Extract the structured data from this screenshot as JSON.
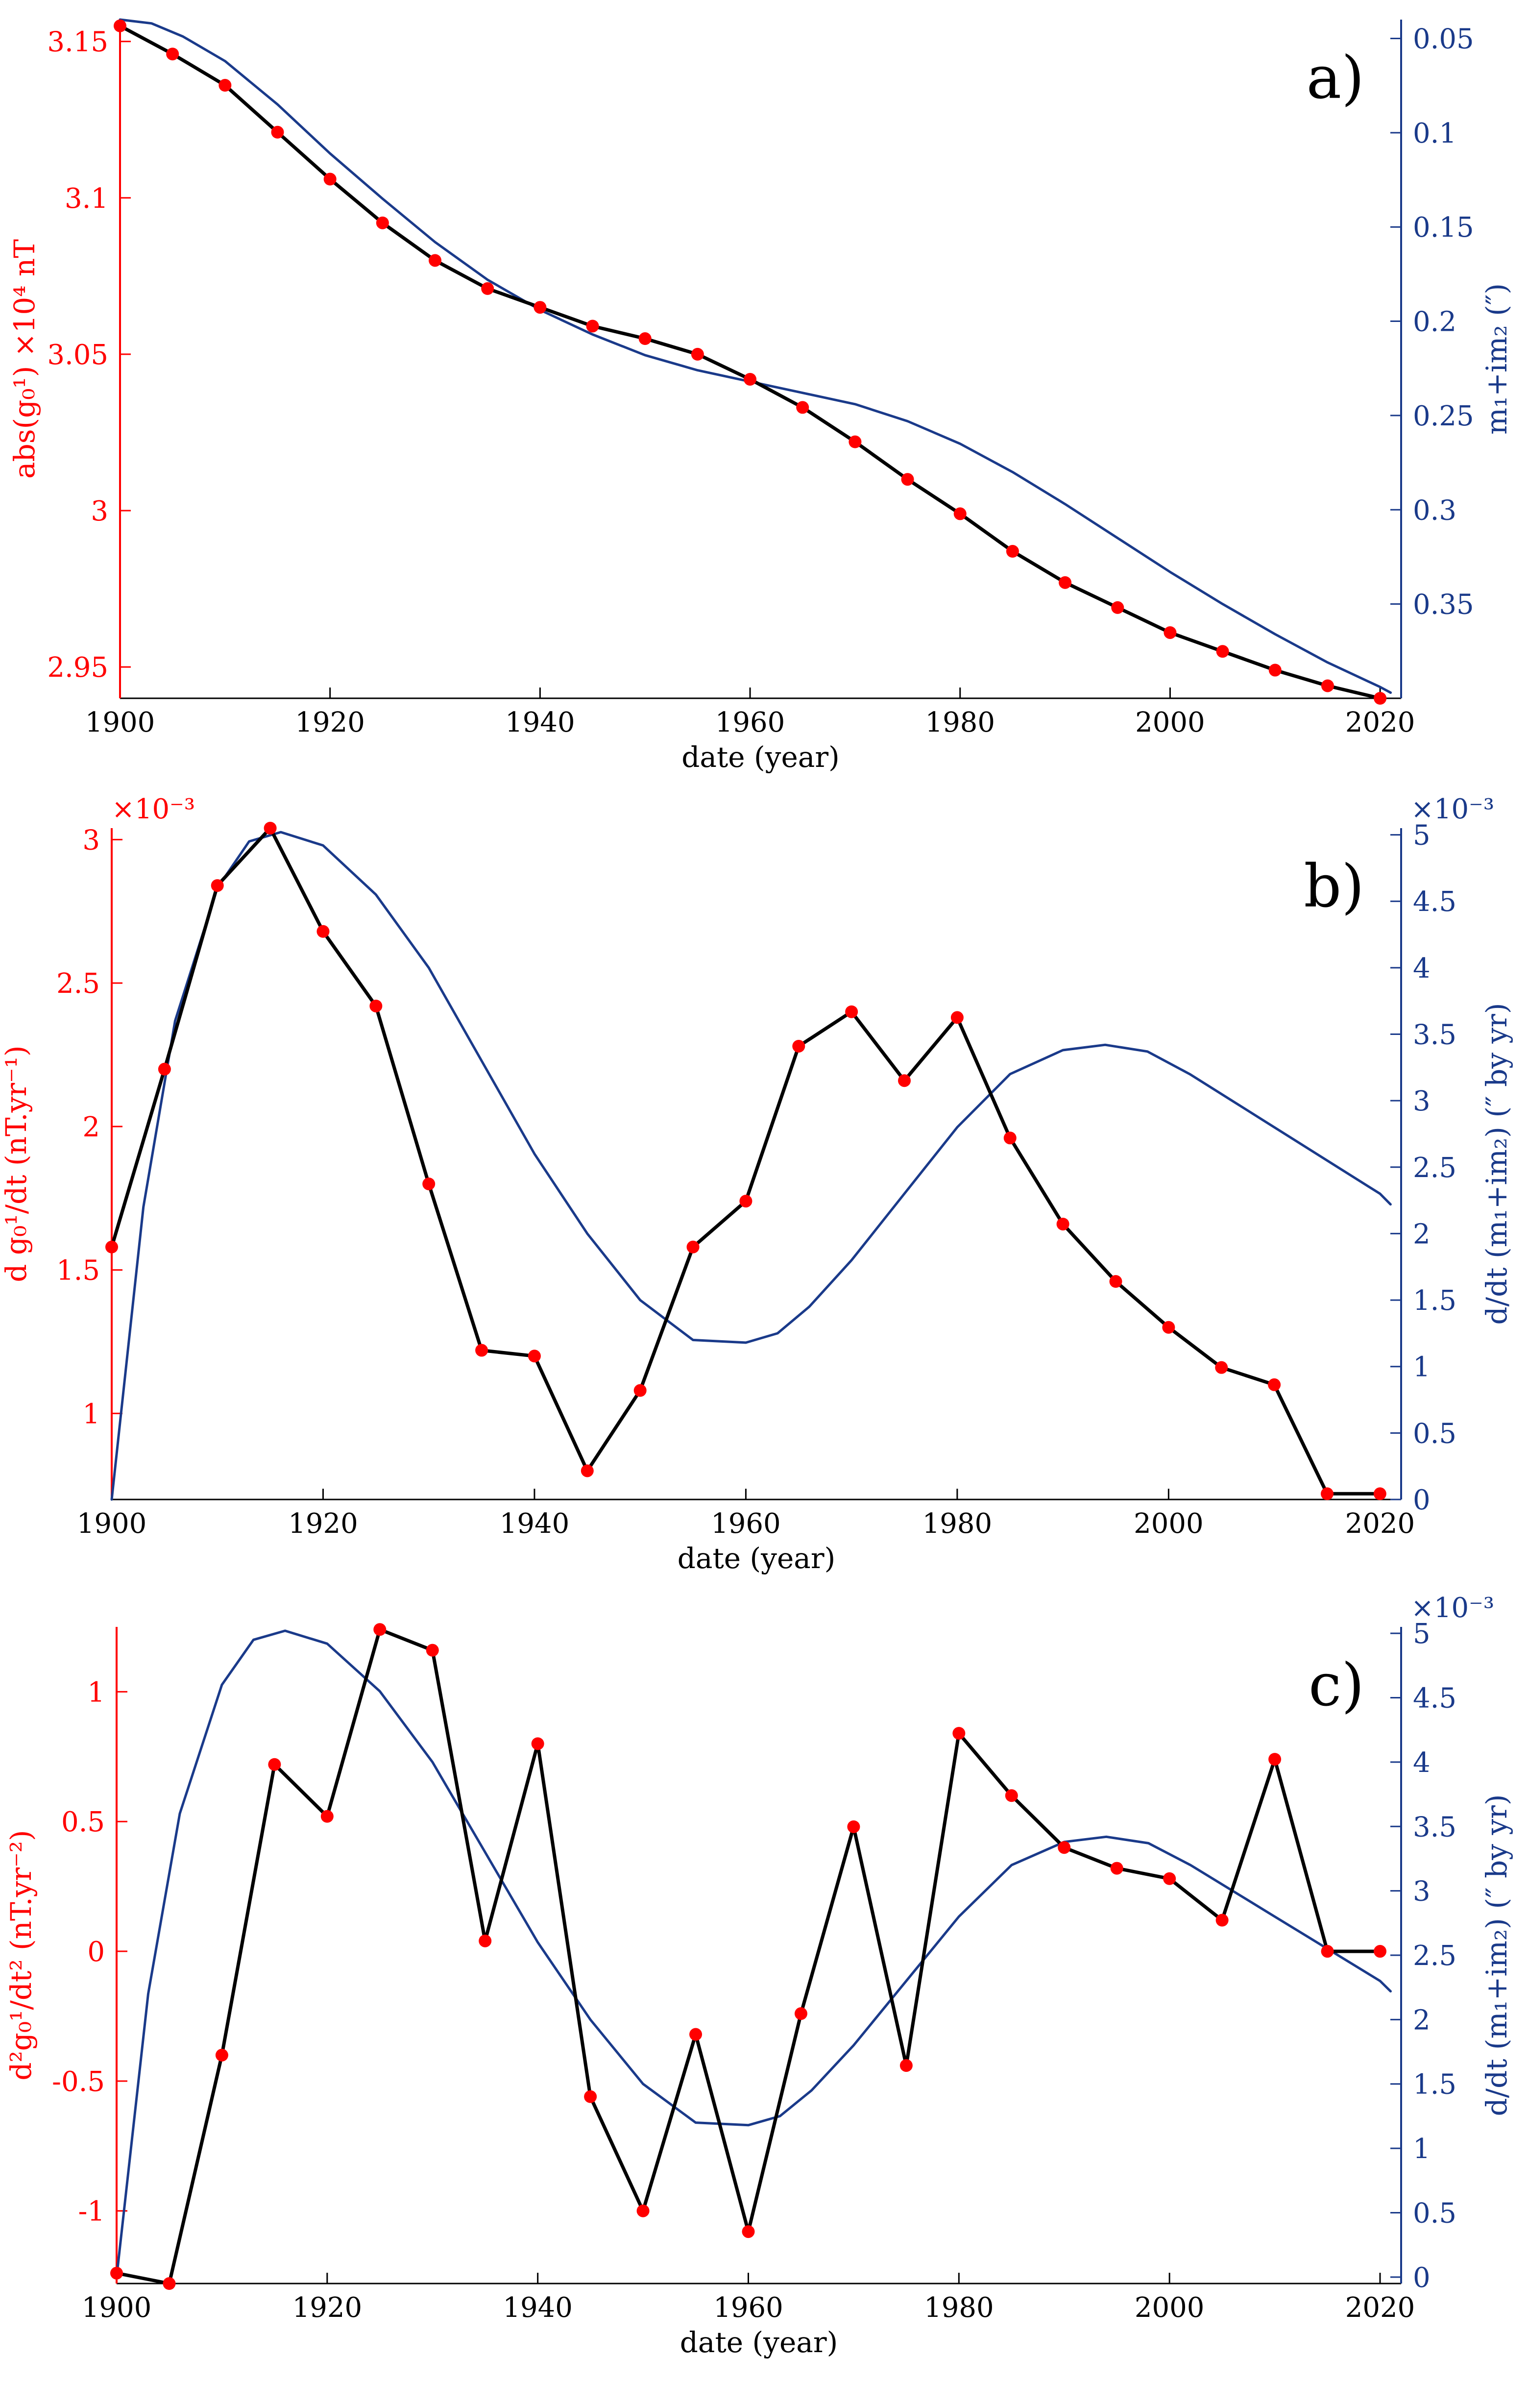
{
  "colors": {
    "left_axis": "#ff0000",
    "right_axis": "#1a3a8a",
    "data_line": "#000000",
    "marker": "#ff0000",
    "curve": "#1a3a8a"
  },
  "chart_data": [
    {
      "type": "line",
      "panel_label": "a)",
      "xlabel": "date (year)",
      "ylabel_left": "abs(g₀¹) ×10⁴ nT",
      "ylabel_right": "m₁+im₂ (″)",
      "xlim": [
        1900,
        2022
      ],
      "ylim_left": [
        2.94,
        3.157
      ],
      "ylim_right": [
        0.04,
        0.4
      ],
      "right_reversed": true,
      "multiplier_left": "",
      "multiplier_right": "",
      "xticks": [
        1900,
        1920,
        1940,
        1960,
        1980,
        2000,
        2020
      ],
      "yticks_left": [
        {
          "v": 2.95,
          "t": "2.95"
        },
        {
          "v": 3.0,
          "t": "3"
        },
        {
          "v": 3.05,
          "t": "3.05"
        },
        {
          "v": 3.1,
          "t": "3.1"
        },
        {
          "v": 3.15,
          "t": "3.15"
        }
      ],
      "yticks_right": [
        {
          "v": 0.05,
          "t": "0.05"
        },
        {
          "v": 0.1,
          "t": "0.1"
        },
        {
          "v": 0.15,
          "t": "0.15"
        },
        {
          "v": 0.2,
          "t": "0.2"
        },
        {
          "v": 0.25,
          "t": "0.25"
        },
        {
          "v": 0.3,
          "t": "0.3"
        },
        {
          "v": 0.35,
          "t": "0.35"
        }
      ],
      "series": [
        {
          "name": "abs(g01)",
          "axis": "left",
          "markers": true,
          "x": [
            1900,
            1905,
            1910,
            1915,
            1920,
            1925,
            1930,
            1935,
            1940,
            1945,
            1950,
            1955,
            1960,
            1965,
            1970,
            1975,
            1980,
            1985,
            1990,
            1995,
            2000,
            2005,
            2010,
            2015,
            2020
          ],
          "y": [
            3.155,
            3.146,
            3.136,
            3.121,
            3.106,
            3.092,
            3.08,
            3.071,
            3.065,
            3.059,
            3.055,
            3.05,
            3.042,
            3.033,
            3.022,
            3.01,
            2.999,
            2.987,
            2.977,
            2.969,
            2.961,
            2.955,
            2.949,
            2.944,
            2.94
          ]
        },
        {
          "name": "m1+im2",
          "axis": "right",
          "markers": false,
          "x": [
            1900,
            1903,
            1906,
            1910,
            1915,
            1920,
            1925,
            1930,
            1935,
            1940,
            1945,
            1950,
            1955,
            1960,
            1965,
            1970,
            1975,
            1980,
            1985,
            1990,
            1995,
            2000,
            2005,
            2010,
            2015,
            2020,
            2021
          ],
          "y": [
            0.04,
            0.042,
            0.049,
            0.062,
            0.085,
            0.111,
            0.135,
            0.158,
            0.178,
            0.194,
            0.207,
            0.218,
            0.226,
            0.232,
            0.238,
            0.244,
            0.253,
            0.265,
            0.28,
            0.297,
            0.315,
            0.333,
            0.35,
            0.366,
            0.381,
            0.394,
            0.397
          ]
        }
      ]
    },
    {
      "type": "line",
      "panel_label": "b)",
      "xlabel": "date (year)",
      "ylabel_left": "d g₀¹/dt (nT.yr⁻¹)",
      "ylabel_right": "d/dt (m₁+im₂) (″ by yr)",
      "xlim": [
        1900,
        2022
      ],
      "ylim_left": [
        0.7,
        3.04
      ],
      "ylim_right": [
        0,
        5.05
      ],
      "right_reversed": false,
      "multiplier_left": "×10⁻³",
      "multiplier_right": "×10⁻³",
      "xticks": [
        1900,
        1920,
        1940,
        1960,
        1980,
        2000,
        2020
      ],
      "yticks_left": [
        {
          "v": 1.0,
          "t": "1"
        },
        {
          "v": 1.5,
          "t": "1.5"
        },
        {
          "v": 2.0,
          "t": "2"
        },
        {
          "v": 2.5,
          "t": "2.5"
        },
        {
          "v": 3.0,
          "t": "3"
        }
      ],
      "yticks_right": [
        {
          "v": 0,
          "t": "0"
        },
        {
          "v": 0.5,
          "t": "0.5"
        },
        {
          "v": 1,
          "t": "1"
        },
        {
          "v": 1.5,
          "t": "1.5"
        },
        {
          "v": 2,
          "t": "2"
        },
        {
          "v": 2.5,
          "t": "2.5"
        },
        {
          "v": 3,
          "t": "3"
        },
        {
          "v": 3.5,
          "t": "3.5"
        },
        {
          "v": 4,
          "t": "4"
        },
        {
          "v": 4.5,
          "t": "4.5"
        },
        {
          "v": 5,
          "t": "5"
        }
      ],
      "series": [
        {
          "name": "dg01/dt",
          "axis": "left",
          "markers": true,
          "x": [
            1900,
            1905,
            1910,
            1915,
            1920,
            1925,
            1930,
            1935,
            1940,
            1945,
            1950,
            1955,
            1960,
            1965,
            1970,
            1975,
            1980,
            1985,
            1990,
            1995,
            2000,
            2005,
            2010,
            2015,
            2020
          ],
          "y": [
            1.58,
            2.2,
            2.84,
            3.04,
            2.68,
            2.42,
            1.8,
            1.22,
            1.2,
            0.8,
            1.08,
            1.58,
            1.74,
            2.28,
            2.4,
            2.16,
            2.38,
            1.96,
            1.66,
            1.46,
            1.3,
            1.16,
            1.1,
            0.72,
            0.72
          ]
        },
        {
          "name": "d/dt(m1+im2)",
          "axis": "right",
          "markers": false,
          "x": [
            1900,
            1903,
            1906,
            1910,
            1913,
            1916,
            1920,
            1925,
            1930,
            1935,
            1940,
            1945,
            1950,
            1955,
            1960,
            1963,
            1966,
            1970,
            1975,
            1980,
            1985,
            1990,
            1994,
            1998,
            2002,
            2006,
            2010,
            2015,
            2019,
            2020,
            2021
          ],
          "y": [
            0.0,
            2.2,
            3.6,
            4.6,
            4.95,
            5.02,
            4.92,
            4.55,
            4.0,
            3.3,
            2.6,
            2.0,
            1.5,
            1.2,
            1.18,
            1.25,
            1.45,
            1.8,
            2.3,
            2.8,
            3.2,
            3.38,
            3.42,
            3.37,
            3.2,
            3.0,
            2.8,
            2.55,
            2.35,
            2.3,
            2.22
          ]
        }
      ]
    },
    {
      "type": "line",
      "panel_label": "c)",
      "xlabel": "date (year)",
      "ylabel_left": "d²g₀¹/dt² (nT.yr⁻²)",
      "ylabel_right": "d/dt (m₁+im₂) (″ by yr)",
      "xlim": [
        1900,
        2022
      ],
      "ylim_left": [
        -1.28,
        1.25
      ],
      "ylim_right": [
        -0.05,
        5.05
      ],
      "right_reversed": false,
      "multiplier_left": "",
      "multiplier_right": "×10⁻³",
      "xticks": [
        1900,
        1920,
        1940,
        1960,
        1980,
        2000,
        2020
      ],
      "yticks_left": [
        {
          "v": -1.0,
          "t": "-1"
        },
        {
          "v": -0.5,
          "t": "-0.5"
        },
        {
          "v": 0,
          "t": "0"
        },
        {
          "v": 0.5,
          "t": "0.5"
        },
        {
          "v": 1.0,
          "t": "1"
        }
      ],
      "yticks_right": [
        {
          "v": 0,
          "t": "0"
        },
        {
          "v": 0.5,
          "t": "0.5"
        },
        {
          "v": 1,
          "t": "1"
        },
        {
          "v": 1.5,
          "t": "1.5"
        },
        {
          "v": 2,
          "t": "2"
        },
        {
          "v": 2.5,
          "t": "2.5"
        },
        {
          "v": 3,
          "t": "3"
        },
        {
          "v": 3.5,
          "t": "3.5"
        },
        {
          "v": 4,
          "t": "4"
        },
        {
          "v": 4.5,
          "t": "4.5"
        },
        {
          "v": 5,
          "t": "5"
        }
      ],
      "series": [
        {
          "name": "d2g01/dt2",
          "axis": "left",
          "markers": true,
          "x": [
            1900,
            1905,
            1910,
            1915,
            1920,
            1925,
            1930,
            1935,
            1940,
            1945,
            1950,
            1955,
            1960,
            1965,
            1970,
            1975,
            1980,
            1985,
            1990,
            1995,
            2000,
            2005,
            2010,
            2015,
            2020
          ],
          "y": [
            -1.24,
            -1.28,
            -0.4,
            0.72,
            0.52,
            1.24,
            1.16,
            0.04,
            0.8,
            -0.56,
            -1.0,
            -0.32,
            -1.08,
            -0.24,
            0.48,
            -0.44,
            0.84,
            0.6,
            0.4,
            0.32,
            0.28,
            0.12,
            0.74,
            0.0,
            0.0
          ]
        },
        {
          "name": "d/dt(m1+im2)",
          "axis": "right",
          "markers": false,
          "x": [
            1900,
            1903,
            1906,
            1910,
            1913,
            1916,
            1920,
            1925,
            1930,
            1935,
            1940,
            1945,
            1950,
            1955,
            1960,
            1963,
            1966,
            1970,
            1975,
            1980,
            1985,
            1990,
            1994,
            1998,
            2002,
            2006,
            2010,
            2015,
            2019,
            2020,
            2021
          ],
          "y": [
            0.0,
            2.2,
            3.6,
            4.6,
            4.95,
            5.02,
            4.92,
            4.55,
            4.0,
            3.3,
            2.6,
            2.0,
            1.5,
            1.2,
            1.18,
            1.25,
            1.45,
            1.8,
            2.3,
            2.8,
            3.2,
            3.38,
            3.42,
            3.37,
            3.2,
            3.0,
            2.8,
            2.55,
            2.35,
            2.3,
            2.22
          ]
        }
      ]
    }
  ]
}
